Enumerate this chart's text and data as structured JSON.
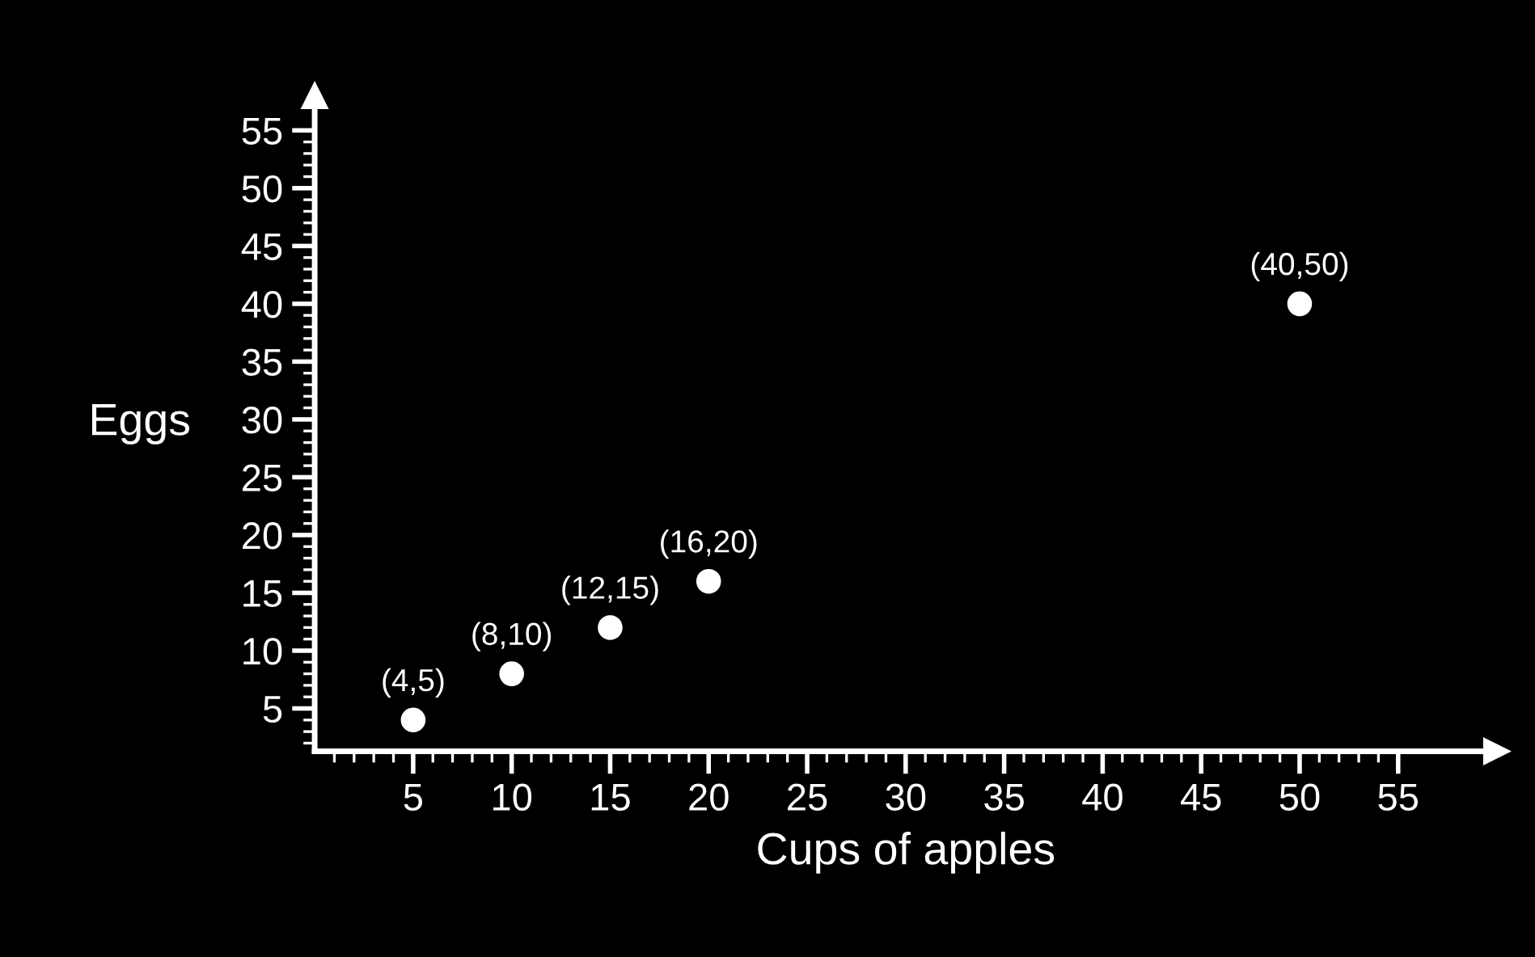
{
  "chart_data": {
    "type": "scatter",
    "xlabel": "Cups of apples",
    "ylabel": "Eggs",
    "x": [
      5,
      10,
      15,
      20,
      50
    ],
    "series": [
      {
        "color": "#ffffff",
        "values": [
          4,
          8,
          12,
          16,
          40
        ]
      }
    ],
    "marker": "circle",
    "xlim": [
      0,
      60
    ],
    "ylim": [
      1.3,
      58
    ],
    "xticks": [
      {
        "value": 1,
        "label": null
      },
      {
        "value": 2,
        "label": null
      },
      {
        "value": 3,
        "label": null
      },
      {
        "value": 4,
        "label": null
      },
      5,
      {
        "value": 6,
        "label": null
      },
      {
        "value": 7,
        "label": null
      },
      {
        "value": 8,
        "label": null
      },
      {
        "value": 9,
        "label": null
      },
      10,
      {
        "value": 11,
        "label": null
      },
      {
        "value": 12,
        "label": null
      },
      {
        "value": 13,
        "label": null
      },
      {
        "value": 14,
        "label": null
      },
      15,
      {
        "value": 16,
        "label": null
      },
      {
        "value": 17,
        "label": null
      },
      {
        "value": 18,
        "label": null
      },
      {
        "value": 19,
        "label": null
      },
      20,
      {
        "value": 21,
        "label": null
      },
      {
        "value": 22,
        "label": null
      },
      {
        "value": 23,
        "label": null
      },
      {
        "value": 24,
        "label": null
      },
      25,
      {
        "value": 26,
        "label": null
      },
      {
        "value": 27,
        "label": null
      },
      {
        "value": 28,
        "label": null
      },
      {
        "value": 29,
        "label": null
      },
      30,
      {
        "value": 31,
        "label": null
      },
      {
        "value": 32,
        "label": null
      },
      {
        "value": 33,
        "label": null
      },
      {
        "value": 34,
        "label": null
      },
      35,
      {
        "value": 36,
        "label": null
      },
      {
        "value": 37,
        "label": null
      },
      {
        "value": 38,
        "label": null
      },
      {
        "value": 39,
        "label": null
      },
      40,
      {
        "value": 41,
        "label": null
      },
      {
        "value": 42,
        "label": null
      },
      {
        "value": 43,
        "label": null
      },
      {
        "value": 44,
        "label": null
      },
      45,
      {
        "value": 46,
        "label": null
      },
      {
        "value": 47,
        "label": null
      },
      {
        "value": 48,
        "label": null
      },
      {
        "value": 49,
        "label": null
      },
      50,
      {
        "value": 51,
        "label": null
      },
      {
        "value": 52,
        "label": null
      },
      {
        "value": 53,
        "label": null
      },
      {
        "value": 54,
        "label": null
      },
      55
    ],
    "yticks": [
      {
        "value": 2,
        "label": null
      },
      {
        "value": 3,
        "label": null
      },
      {
        "value": 4,
        "label": null
      },
      5,
      {
        "value": 6,
        "label": null
      },
      {
        "value": 7,
        "label": null
      },
      {
        "value": 8,
        "label": null
      },
      {
        "value": 9,
        "label": null
      },
      10,
      {
        "value": 11,
        "label": null
      },
      {
        "value": 12,
        "label": null
      },
      {
        "value": 13,
        "label": null
      },
      {
        "value": 14,
        "label": null
      },
      15,
      {
        "value": 16,
        "label": null
      },
      {
        "value": 17,
        "label": null
      },
      {
        "value": 18,
        "label": null
      },
      {
        "value": 19,
        "label": null
      },
      20,
      {
        "value": 21,
        "label": null
      },
      {
        "value": 22,
        "label": null
      },
      {
        "value": 23,
        "label": null
      },
      {
        "value": 24,
        "label": null
      },
      25,
      {
        "value": 26,
        "label": null
      },
      {
        "value": 27,
        "label": null
      },
      {
        "value": 28,
        "label": null
      },
      {
        "value": 29,
        "label": null
      },
      30,
      {
        "value": 31,
        "label": null
      },
      {
        "value": 32,
        "label": null
      },
      {
        "value": 33,
        "label": null
      },
      {
        "value": 34,
        "label": null
      },
      35,
      {
        "value": 36,
        "label": null
      },
      {
        "value": 37,
        "label": null
      },
      {
        "value": 38,
        "label": null
      },
      {
        "value": 39,
        "label": null
      },
      40,
      {
        "value": 41,
        "label": null
      },
      {
        "value": 42,
        "label": null
      },
      {
        "value": 43,
        "label": null
      },
      {
        "value": 44,
        "label": null
      },
      45,
      {
        "value": 46,
        "label": null
      },
      {
        "value": 47,
        "label": null
      },
      {
        "value": 48,
        "label": null
      },
      {
        "value": 49,
        "label": null
      },
      50,
      {
        "value": 51,
        "label": null
      },
      {
        "value": 52,
        "label": null
      },
      {
        "value": 53,
        "label": null
      },
      {
        "value": 54,
        "label": null
      },
      55
    ],
    "annotations": [
      {
        "text": "(4,5)",
        "x": 5,
        "y": 4
      },
      {
        "text": "(8,10)",
        "x": 10,
        "y": 8
      },
      {
        "text": "(12,15)",
        "x": 15,
        "y": 12
      },
      {
        "text": "(16,20)",
        "x": 20,
        "y": 16
      },
      {
        "text": "(40,50)",
        "x": 50,
        "y": 40
      }
    ]
  }
}
